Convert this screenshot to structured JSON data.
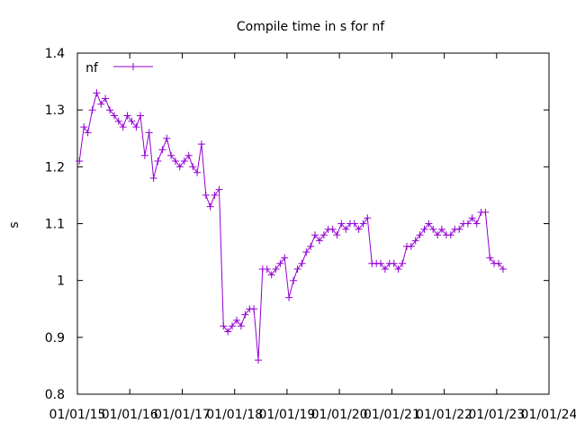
{
  "chart_data": {
    "type": "scatter",
    "title": "Compile time in s for nf",
    "xlabel": "",
    "ylabel": "s",
    "ylim": [
      0.8,
      1.4
    ],
    "yticks": [
      "0.8",
      "0.9",
      "1",
      "1.1",
      "1.2",
      "1.3",
      "1.4"
    ],
    "xlim": [
      "2015-01-01",
      "2024-01-01"
    ],
    "xticks": [
      "01/01/15",
      "01/01/16",
      "01/01/17",
      "01/01/18",
      "01/01/19",
      "01/01/20",
      "01/01/21",
      "01/01/22",
      "01/01/23",
      "01/01/24"
    ],
    "grid": false,
    "legend": {
      "position": "top-left",
      "entries": [
        "nf"
      ]
    },
    "series": [
      {
        "name": "nf",
        "color": "#9400d3",
        "marker": "plus",
        "x": [
          "2015-01-15",
          "2015-02-15",
          "2015-03-15",
          "2015-04-15",
          "2015-05-15",
          "2015-06-15",
          "2015-07-15",
          "2015-08-15",
          "2015-09-15",
          "2015-10-15",
          "2015-11-15",
          "2015-12-15",
          "2016-01-15",
          "2016-02-15",
          "2016-03-15",
          "2016-04-15",
          "2016-05-15",
          "2016-06-15",
          "2016-07-15",
          "2016-08-15",
          "2016-09-15",
          "2016-10-15",
          "2016-11-15",
          "2016-12-15",
          "2017-01-15",
          "2017-02-15",
          "2017-03-15",
          "2017-04-15",
          "2017-05-15",
          "2017-06-15",
          "2017-07-15",
          "2017-08-15",
          "2017-09-15",
          "2017-10-15",
          "2017-11-15",
          "2017-12-15",
          "2018-01-15",
          "2018-02-15",
          "2018-03-15",
          "2018-04-15",
          "2018-05-15",
          "2018-06-15",
          "2018-07-15",
          "2018-08-15",
          "2018-09-15",
          "2018-10-15",
          "2018-11-15",
          "2018-12-15",
          "2019-01-15",
          "2019-02-15",
          "2019-03-15",
          "2019-04-15",
          "2019-05-15",
          "2019-06-15",
          "2019-07-15",
          "2019-08-15",
          "2019-09-15",
          "2019-10-15",
          "2019-11-15",
          "2019-12-15",
          "2020-01-15",
          "2020-02-15",
          "2020-03-15",
          "2020-04-15",
          "2020-05-15",
          "2020-06-15",
          "2020-07-15",
          "2020-08-15",
          "2020-09-15",
          "2020-10-15",
          "2020-11-15",
          "2020-12-15",
          "2021-01-15",
          "2021-02-15",
          "2021-03-15",
          "2021-04-15",
          "2021-05-15",
          "2021-06-15",
          "2021-07-15",
          "2021-08-15",
          "2021-09-15",
          "2021-10-15",
          "2021-11-15",
          "2021-12-15",
          "2022-01-15",
          "2022-02-15",
          "2022-03-15",
          "2022-04-15",
          "2022-05-15",
          "2022-06-15",
          "2022-07-15",
          "2022-08-15",
          "2022-09-15",
          "2022-10-15",
          "2022-11-15",
          "2022-12-15",
          "2023-01-15",
          "2023-02-15"
        ],
        "y": [
          1.21,
          1.27,
          1.26,
          1.3,
          1.33,
          1.31,
          1.32,
          1.3,
          1.29,
          1.28,
          1.27,
          1.29,
          1.28,
          1.27,
          1.29,
          1.22,
          1.26,
          1.18,
          1.21,
          1.23,
          1.25,
          1.22,
          1.21,
          1.2,
          1.21,
          1.22,
          1.2,
          1.19,
          1.24,
          1.15,
          1.13,
          1.15,
          1.16,
          0.92,
          0.91,
          0.92,
          0.93,
          0.92,
          0.94,
          0.95,
          0.95,
          0.86,
          1.02,
          1.02,
          1.01,
          1.02,
          1.03,
          1.04,
          0.97,
          1.0,
          1.02,
          1.03,
          1.05,
          1.06,
          1.08,
          1.07,
          1.08,
          1.09,
          1.09,
          1.08,
          1.1,
          1.09,
          1.1,
          1.1,
          1.09,
          1.1,
          1.11,
          1.03,
          1.03,
          1.03,
          1.02,
          1.03,
          1.03,
          1.02,
          1.03,
          1.06,
          1.06,
          1.07,
          1.08,
          1.09,
          1.1,
          1.09,
          1.08,
          1.09,
          1.08,
          1.08,
          1.09,
          1.09,
          1.1,
          1.1,
          1.11,
          1.1,
          1.12,
          1.12,
          1.04,
          1.03,
          1.03,
          1.02
        ]
      }
    ]
  }
}
